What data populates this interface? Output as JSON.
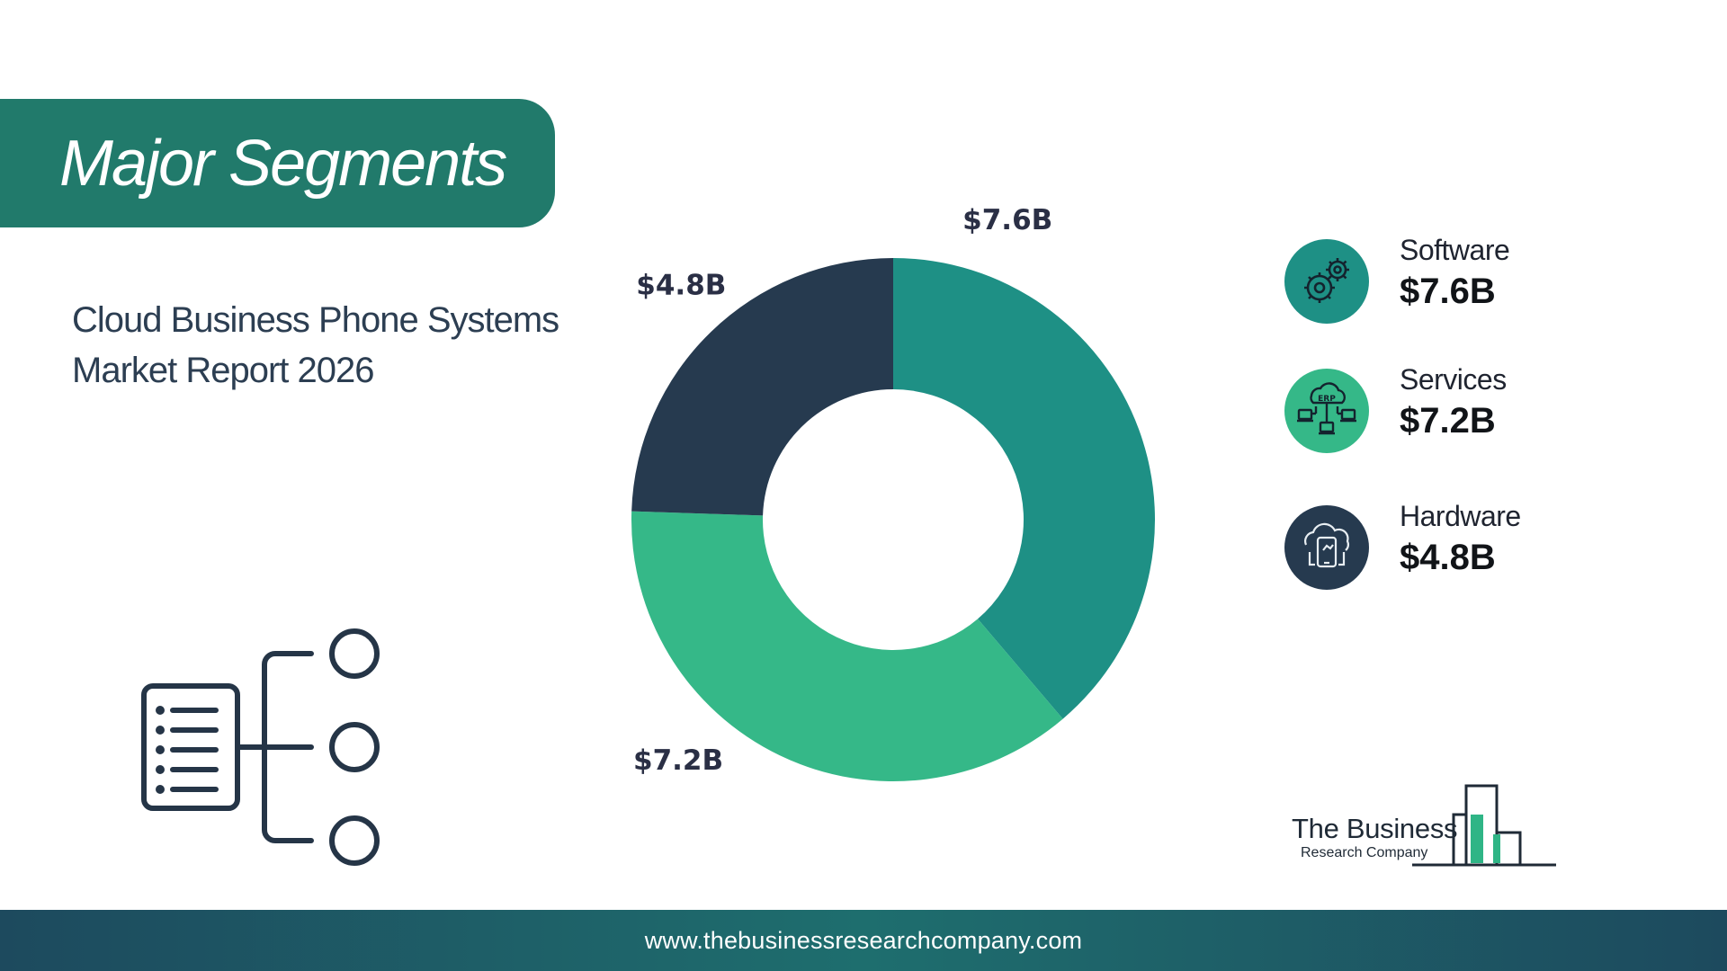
{
  "header": {
    "title": "Major Segments"
  },
  "report": {
    "title_line1": "Cloud Business Phone Systems",
    "title_line2": "Market Report 2026"
  },
  "chart_data": {
    "type": "pie",
    "donut": true,
    "categories": [
      "Software",
      "Services",
      "Hardware"
    ],
    "values": [
      7.6,
      7.2,
      4.8
    ],
    "labels": [
      "$7.6B",
      "$7.2B",
      "$4.8B"
    ],
    "colors": [
      "#1e9085",
      "#35b888",
      "#263a4f"
    ],
    "legend_position": "right"
  },
  "legend": {
    "items": [
      {
        "name": "Software",
        "value": "$7.6B",
        "icon": "gears-icon",
        "color": "#1e9085"
      },
      {
        "name": "Services",
        "value": "$7.2B",
        "icon": "erp-cloud-icon",
        "color": "#35b888"
      },
      {
        "name": "Hardware",
        "value": "$4.8B",
        "icon": "cloud-phone-icon",
        "color": "#263a4f"
      }
    ]
  },
  "logo": {
    "name": "The Business",
    "sub": "Research Company"
  },
  "footer": {
    "url": "www.thebusinessresearchcompany.com"
  }
}
